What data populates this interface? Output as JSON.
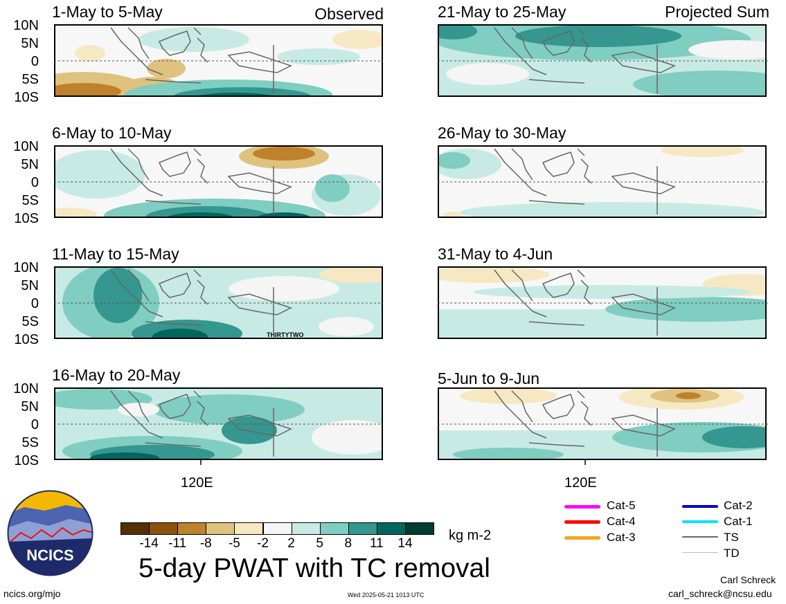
{
  "tags": {
    "left": "Observed",
    "right": "Projected Sum"
  },
  "lat_labels": [
    "10N",
    "5N",
    "0",
    "5S",
    "10S"
  ],
  "lon_label": "120E",
  "panels": [
    {
      "title": "1-May to 5-May",
      "side": "left",
      "row": 0
    },
    {
      "title": "6-May to 10-May",
      "side": "left",
      "row": 1
    },
    {
      "title": "11-May to 15-May",
      "side": "left",
      "row": 2,
      "storm_label": "THIRTYTWO"
    },
    {
      "title": "16-May to 20-May",
      "side": "left",
      "row": 3
    },
    {
      "title": "21-May to 25-May",
      "side": "right",
      "row": 0
    },
    {
      "title": "26-May to 30-May",
      "side": "right",
      "row": 1
    },
    {
      "title": "31-May to 4-Jun",
      "side": "right",
      "row": 2
    },
    {
      "title": "5-Jun to 9-Jun",
      "side": "right",
      "row": 3
    }
  ],
  "colorbar": {
    "labels": [
      "-14",
      "-11",
      "-8",
      "-5",
      "-2",
      "2",
      "5",
      "8",
      "11",
      "14"
    ],
    "colors": [
      "#543005",
      "#8c510a",
      "#bf812d",
      "#dfc27d",
      "#f6e8c3",
      "#f5f5f5",
      "#c7eae5",
      "#80cdc1",
      "#35978f",
      "#01665e",
      "#003c30"
    ],
    "units": "kg m-2"
  },
  "main_title": "5-day PWAT with TC removal",
  "tc_legend": [
    {
      "label": "Cat-5",
      "color": "#ff00ff"
    },
    {
      "label": "Cat-4",
      "color": "#ff0000"
    },
    {
      "label": "Cat-3",
      "color": "#f5a623"
    },
    {
      "label": "Cat-2",
      "color": "#0000cc"
    },
    {
      "label": "Cat-1",
      "color": "#00e5ff"
    },
    {
      "label": "TS",
      "color": "#666666"
    },
    {
      "label": "TD",
      "color": "#bbbbbb"
    }
  ],
  "logo_text": "NCICS",
  "footer": {
    "left": "ncics.org/mjo",
    "center": "Wed 2025-05-21 1013 UTC",
    "author": "Carl Schreck",
    "email": "carl_schreck@ncsu.edu"
  }
}
